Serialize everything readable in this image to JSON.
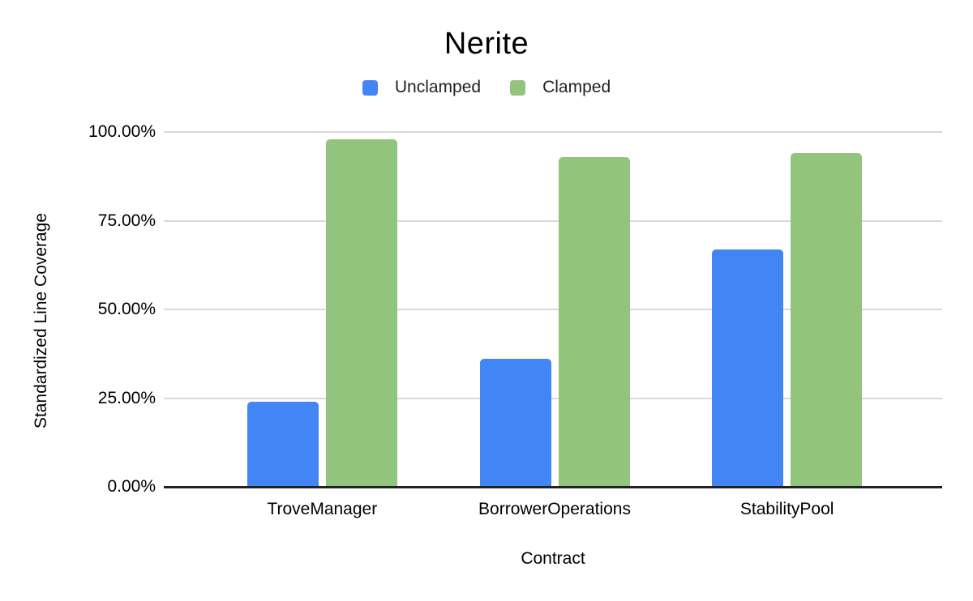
{
  "chart": {
    "title": "Nerite"
  },
  "chart_data": {
    "type": "bar",
    "title": "Nerite",
    "categories": [
      "TroveManager",
      "BorrowerOperations",
      "StabilityPool"
    ],
    "series": [
      {
        "name": "Unclamped",
        "color": "#4285F4",
        "values": [
          24,
          36,
          67
        ]
      },
      {
        "name": "Clamped",
        "color": "#93C47D",
        "values": [
          98,
          93,
          94
        ]
      }
    ],
    "xlabel": "Contract",
    "ylabel": "Standardized Line Coverage",
    "ylim": [
      0,
      100
    ],
    "y_ticks": [
      {
        "label": "0.00%",
        "value": 0
      },
      {
        "label": "25.00%",
        "value": 25
      },
      {
        "label": "50.00%",
        "value": 50
      },
      {
        "label": "75.00%",
        "value": 75
      },
      {
        "label": "100.00%",
        "value": 100
      }
    ],
    "grid": true,
    "legend_position": "top",
    "gridline_color": "#d9d9d9",
    "axis_line_color": "#212121"
  }
}
